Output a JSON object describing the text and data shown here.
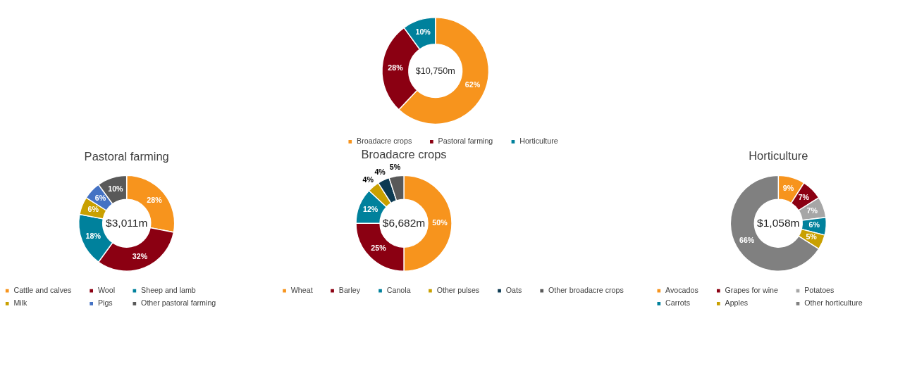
{
  "chart_data": [
    {
      "type": "donut",
      "categories": [
        "Broadacre crops",
        "Pastoral farming",
        "Horticulture"
      ],
      "values": [
        62,
        28,
        10
      ],
      "colors": [
        "#f7941d",
        "#8b0012",
        "#00819c"
      ],
      "value_labels": [
        "62%",
        "28%",
        "10%"
      ],
      "annotations": [
        "$10,750m"
      ],
      "legend": "bottom"
    },
    {
      "type": "donut",
      "title": "Pastoral farming",
      "categories": [
        "Cattle and calves",
        "Wool",
        "Sheep and lamb",
        "Milk",
        "Pigs",
        "Other pastoral farming"
      ],
      "values": [
        28,
        32,
        18,
        6,
        6,
        10
      ],
      "colors": [
        "#f7941d",
        "#8b0012",
        "#00819c",
        "#c9a000",
        "#4472c4",
        "#595959"
      ],
      "value_labels": [
        "28%",
        "32%",
        "18%",
        "6%",
        "6%",
        "10%"
      ],
      "annotations": [
        "$3,011m"
      ],
      "legend": "bottom"
    },
    {
      "type": "donut",
      "title": "Broadacre crops",
      "categories": [
        "Wheat",
        "Barley",
        "Canola",
        "Other pulses",
        "Oats",
        "Other broadacre crops"
      ],
      "values": [
        50,
        25,
        12,
        4,
        4,
        5
      ],
      "colors": [
        "#f7941d",
        "#8b0012",
        "#00819c",
        "#c9a000",
        "#0c3a52",
        "#595959"
      ],
      "value_labels": [
        "50%",
        "25%",
        "12%",
        "4%",
        "4%",
        "5%"
      ],
      "annotations": [
        "$6,682m"
      ],
      "legend": "bottom"
    },
    {
      "type": "donut",
      "title": "Horticulture",
      "categories": [
        "Avocados",
        "Grapes for wine",
        "Potatoes",
        "Carrots",
        "Apples",
        "Other horticulture"
      ],
      "values": [
        9,
        7,
        7,
        6,
        5,
        66
      ],
      "colors": [
        "#f7941d",
        "#8b0012",
        "#a6a6a6",
        "#00819c",
        "#c9a000",
        "#808080"
      ],
      "value_labels": [
        "9%",
        "7%",
        "7%",
        "6%",
        "5%",
        "66%"
      ],
      "annotations": [
        "$1,058m"
      ],
      "legend": "bottom"
    }
  ]
}
